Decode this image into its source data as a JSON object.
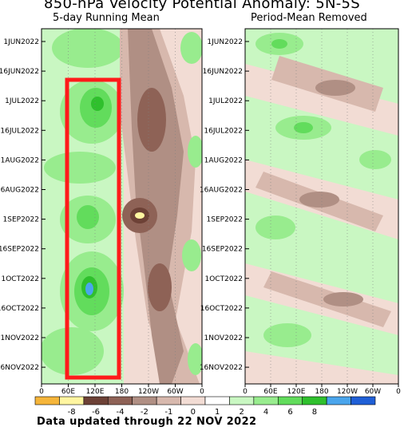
{
  "title": "850-hPa Velocity Potential Anomaly: 5N-5S",
  "footer": "Data updated through 22 NOV 2022",
  "chart_data": [
    {
      "type": "heatmap",
      "subtitle": "5-day Running Mean",
      "y_axis": {
        "direction": "time, top to bottom",
        "ticks": [
          "1JUN2022",
          "16JUN2022",
          "1JUL2022",
          "16JUL2022",
          "1AUG2022",
          "16AUG2022",
          "1SEP2022",
          "16SEP2022",
          "1OCT2022",
          "16OCT2022",
          "1NOV2022",
          "16NOV2022"
        ]
      },
      "x_axis": {
        "ticks": [
          "0",
          "60E",
          "120E",
          "180",
          "120W",
          "60W",
          "0"
        ]
      },
      "annotation": "red rectangle highlighting 60E-180, 25 JUN 2022 - 22 NOV 2022",
      "highlight": {
        "x_from": "60E",
        "x_to": "180",
        "t_from": "25JUN2022",
        "t_to": "22NOV2022",
        "color": "#ff1a1a"
      }
    },
    {
      "type": "heatmap",
      "subtitle": "Period-Mean Removed",
      "y_axis": {
        "direction": "time, top to bottom",
        "ticks": [
          "1JUN2022",
          "16JUN2022",
          "1JUL2022",
          "16JUL2022",
          "1AUG2022",
          "16AUG2022",
          "1SEP2022",
          "16SEP2022",
          "1OCT2022",
          "16OCT2022",
          "1NOV2022",
          "16NOV2022"
        ]
      },
      "x_axis": {
        "ticks": [
          "0",
          "60E",
          "120E",
          "180",
          "120W",
          "60W",
          "0"
        ]
      }
    }
  ],
  "colorbar": {
    "labels": [
      "-8",
      "-6",
      "-4",
      "-2",
      "-1",
      "0",
      "1",
      "2",
      "4",
      "6",
      "8"
    ],
    "colors": [
      "#f5b53a",
      "#fff5a0",
      "#6d4136",
      "#8e6256",
      "#b08f84",
      "#d7b8ad",
      "#f2dcd4",
      "#ffffff",
      "#c9f7c2",
      "#98ec8e",
      "#62dc5c",
      "#2fc02d",
      "#4aa5ec",
      "#1f5fd6"
    ]
  }
}
